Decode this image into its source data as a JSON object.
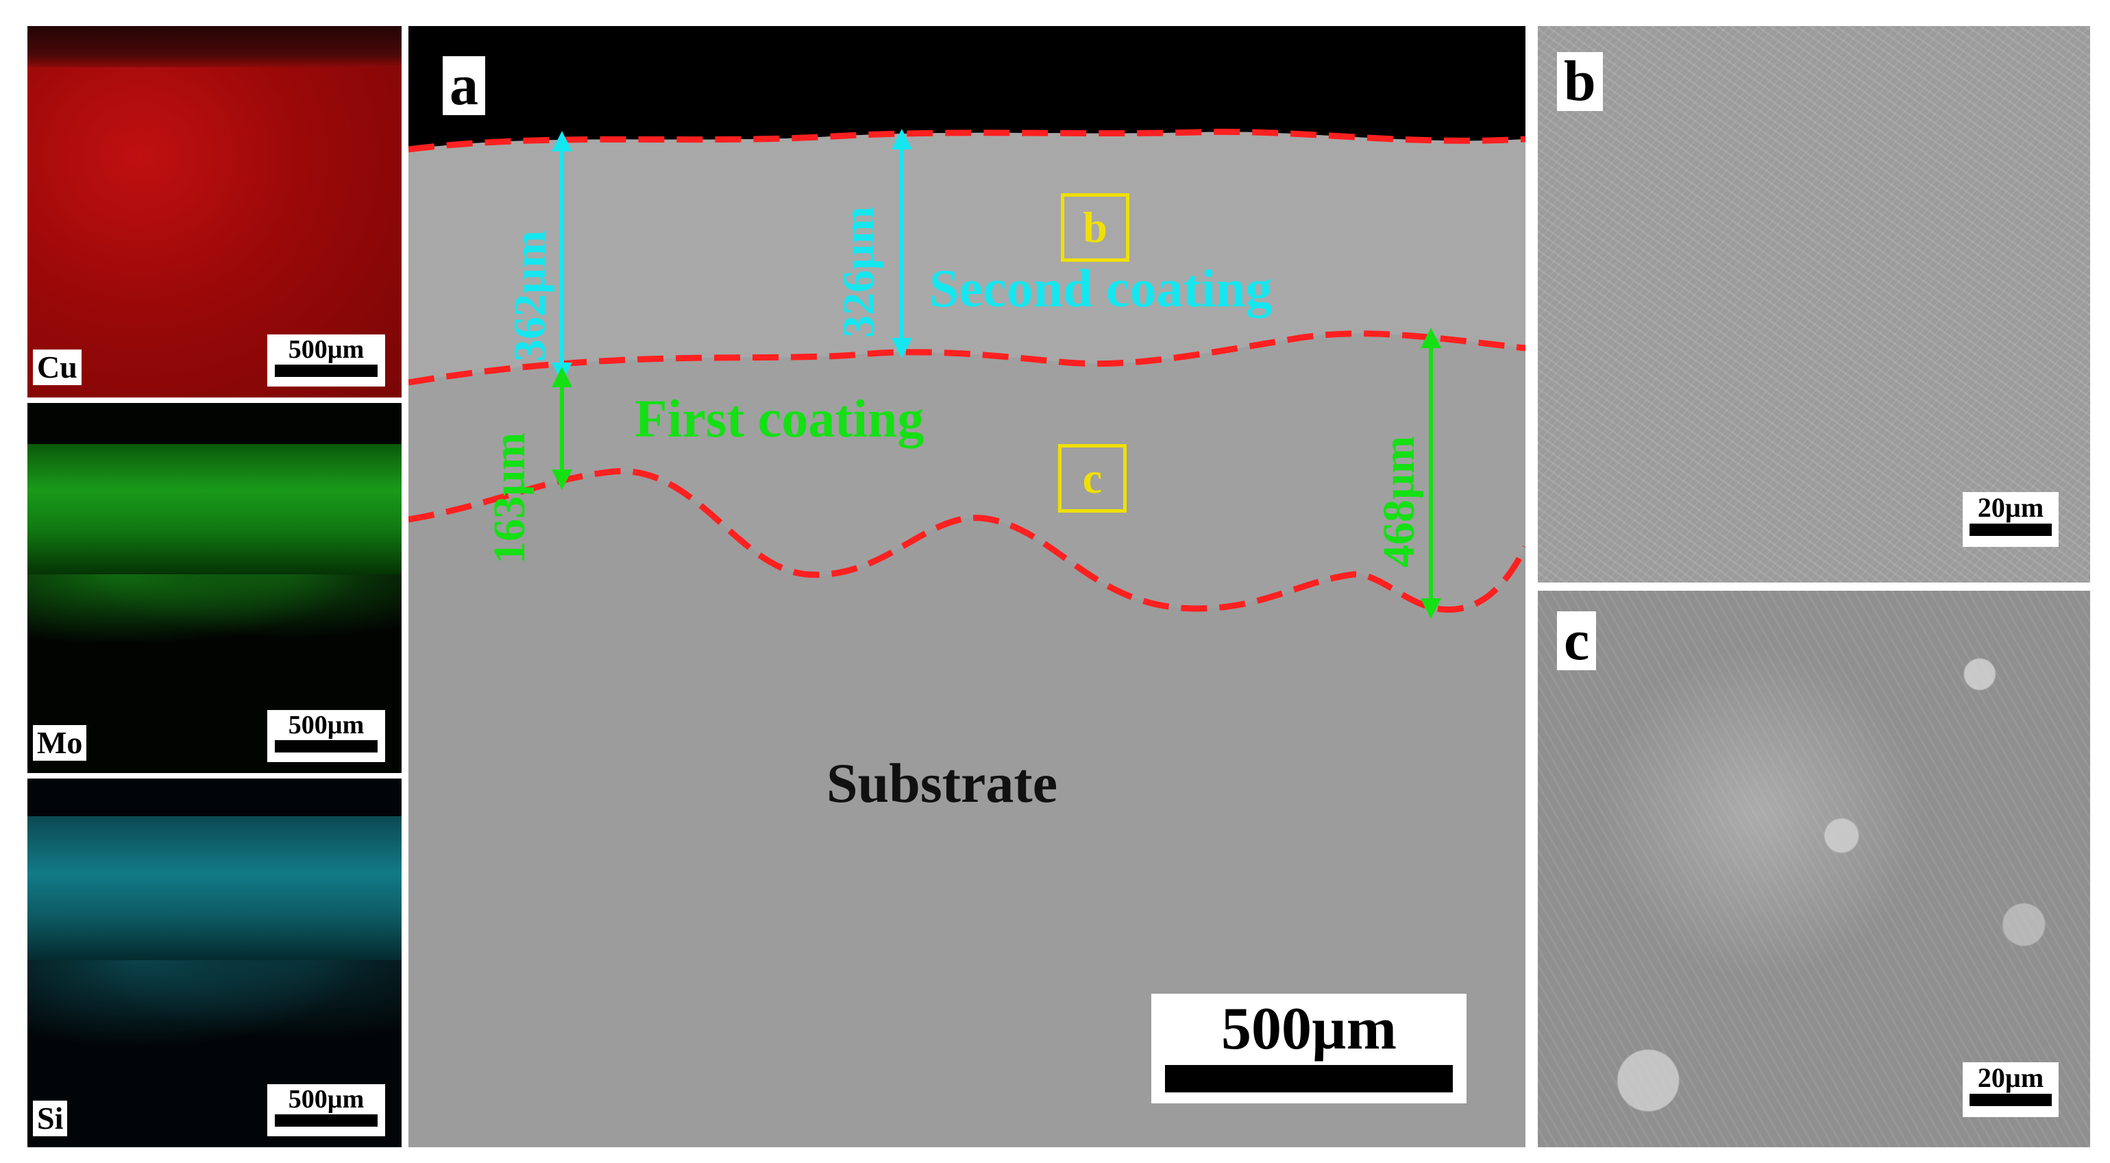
{
  "eds_panels": [
    {
      "element": "Cu",
      "scale": "500µm",
      "color": "#b00c0c"
    },
    {
      "element": "Mo",
      "scale": "500µm",
      "color": "#1a9a1a"
    },
    {
      "element": "Si",
      "scale": "500µm",
      "color": "#127a86"
    }
  ],
  "main_panel": {
    "letter": "a",
    "second_thickness": "362µm",
    "second_thickness_2": "326µm",
    "second_coating": "Second coating",
    "first_thickness": "163µm",
    "first_coating": "First coating",
    "total_thickness": "468µm",
    "substrate": "Substrate",
    "marker_b": "b",
    "marker_c": "c",
    "scale": "500µm",
    "boundary_color": "#ff2020",
    "second_color": "#14e6f0",
    "first_color": "#14e014",
    "marker_color": "#f0e000"
  },
  "panel_b": {
    "letter": "b",
    "scale": "20µm"
  },
  "panel_c": {
    "letter": "c",
    "scale": "20µm"
  }
}
